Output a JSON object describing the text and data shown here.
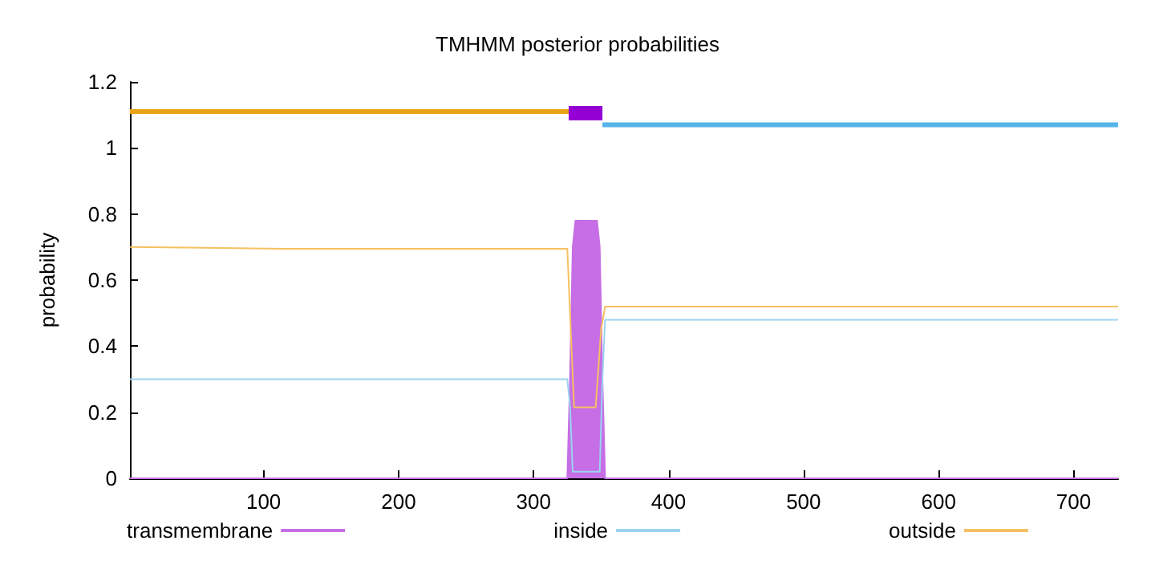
{
  "chart_data": {
    "type": "line",
    "title": "TMHMM posterior probabilities",
    "ylabel": "probability",
    "xlim": [
      1,
      733
    ],
    "xticks": [
      100,
      200,
      300,
      400,
      500,
      600,
      700
    ],
    "ylim": [
      0,
      1.2
    ],
    "yticks": [
      0,
      0.2,
      0.4,
      0.6,
      0.8,
      1,
      1.2
    ],
    "grid": false,
    "legend": "bottom",
    "marker": "none",
    "line_style": "solid",
    "series": [
      {
        "name": "transmembrane",
        "type": "area",
        "color": "#c66ee6",
        "x": [
          1,
          325,
          327,
          329,
          331,
          347,
          349,
          351,
          353,
          733
        ],
        "values": [
          0,
          0,
          0.3,
          0.7,
          0.78,
          0.78,
          0.7,
          0.3,
          0,
          0
        ]
      },
      {
        "name": "inside",
        "color": "#9ad3f0",
        "x": [
          1,
          325,
          327,
          329,
          349,
          351,
          353,
          733
        ],
        "values": [
          0.3,
          0.3,
          0.22,
          0.02,
          0.02,
          0.3,
          0.48,
          0.48
        ]
      },
      {
        "name": "outside",
        "color": "#f5c060",
        "x": [
          1,
          115,
          325,
          327,
          330,
          346,
          350,
          353,
          733
        ],
        "values": [
          0.7,
          0.695,
          0.695,
          0.5,
          0.215,
          0.215,
          0.45,
          0.52,
          0.52
        ]
      },
      {
        "color": "#e8a317",
        "x": [
          1,
          326
        ],
        "values": [
          1.11,
          1.11
        ]
      },
      {
        "color": "#9400d3",
        "x": [
          326,
          351
        ],
        "values": [
          1.105,
          1.105
        ]
      },
      {
        "color": "#56b4e9",
        "x": [
          351,
          733
        ],
        "values": [
          1.07,
          1.07
        ]
      }
    ]
  }
}
